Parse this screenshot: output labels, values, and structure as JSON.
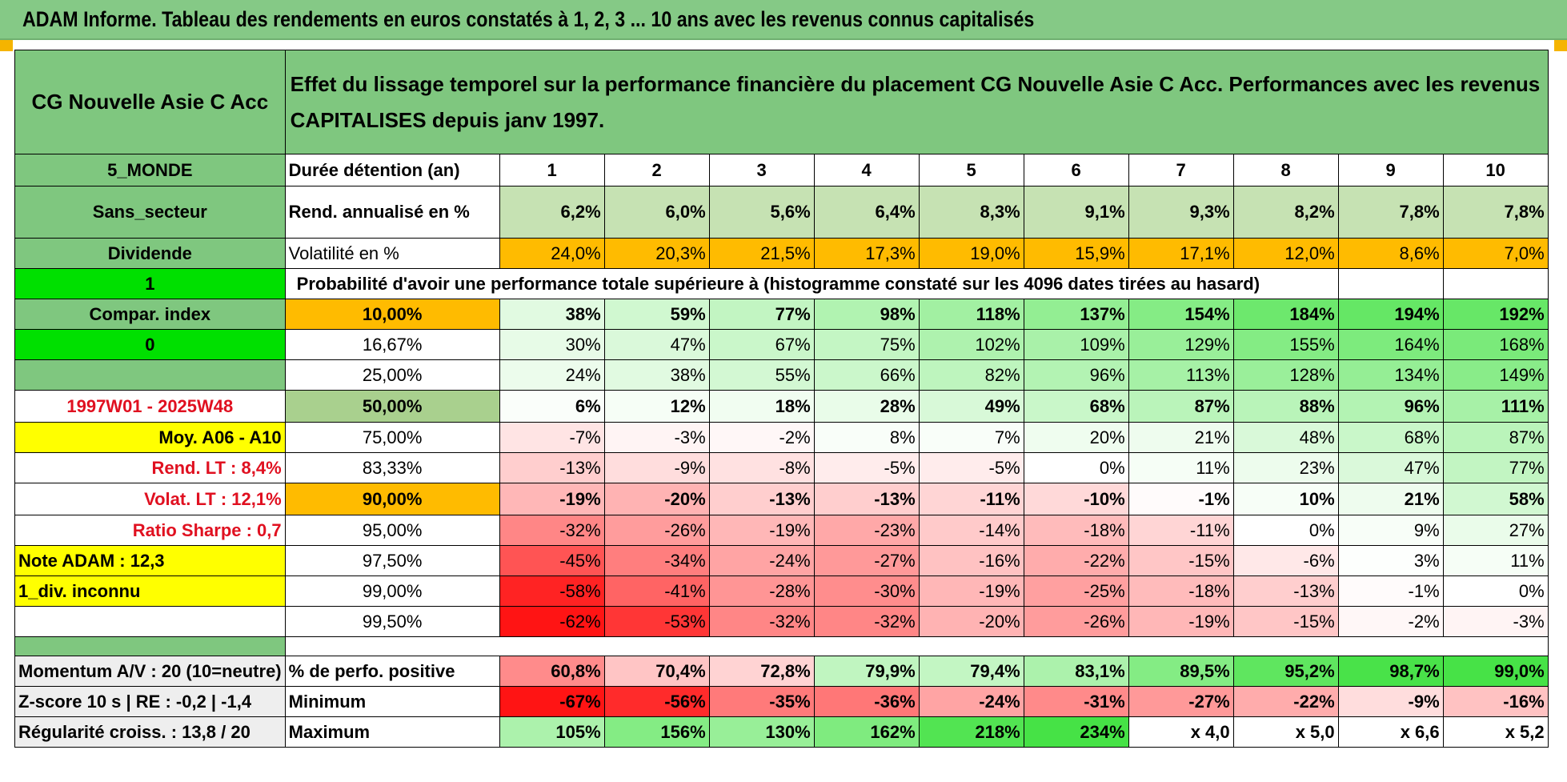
{
  "title": "ADAM Informe. Tableau des rendements en euros constatés à 1, 2, 3 ... 10 ans avec les revenus connus capitalisés",
  "header": {
    "fund_name": "CG Nouvelle Asie C Acc",
    "description": "Effet du lissage temporel sur la performance financière du placement CG Nouvelle Asie C Acc. Performances avec les revenus CAPITALISES depuis janv 1997."
  },
  "left_labels": {
    "zone": "5_MONDE",
    "sector": "Sans_secteur",
    "dividend": "Dividende",
    "one": "1",
    "compar": "Compar. index",
    "zero": "0",
    "blank": "",
    "period": "1997W01 - 2025W48",
    "moy": "Moy. A06 - A10",
    "rend_lt": "Rend. LT :    8,4%",
    "volat_lt": "Volat. LT :    12,1%",
    "sharpe": "Ratio Sharpe :     0,7",
    "note": "Note ADAM : 12,3",
    "div": "1_div. inconnu",
    "momentum": "Momentum A/V : 20 (10=neutre)",
    "zscore": "Z-score 10 s | RE : -0,2 | -1,4",
    "regularite": "Régularité croiss. : 13,8 / 20"
  },
  "duration_label": "Durée détention (an)",
  "years": [
    "1",
    "2",
    "3",
    "4",
    "5",
    "6",
    "7",
    "8",
    "9",
    "10"
  ],
  "rend_label": "Rend. annualisé en %",
  "rend": [
    "6,2%",
    "6,0%",
    "5,6%",
    "6,4%",
    "8,3%",
    "9,1%",
    "9,3%",
    "8,2%",
    "7,8%",
    "7,8%"
  ],
  "vol_label": "Volatilité en %",
  "vol": [
    "24,0%",
    "20,3%",
    "21,5%",
    "17,3%",
    "19,0%",
    "15,9%",
    "17,1%",
    "12,0%",
    "8,6%",
    "7,0%"
  ],
  "prob_label": "Probabilité d'avoir une performance totale supérieure à (histogramme constaté sur les 4096 dates tirées au hasard)",
  "prob_rows": [
    {
      "p": "10,00%",
      "v": [
        "38%",
        "59%",
        "77%",
        "98%",
        "118%",
        "137%",
        "154%",
        "184%",
        "194%",
        "192%"
      ]
    },
    {
      "p": "16,67%",
      "v": [
        "30%",
        "47%",
        "67%",
        "75%",
        "102%",
        "109%",
        "129%",
        "155%",
        "164%",
        "168%"
      ]
    },
    {
      "p": "25,00%",
      "v": [
        "24%",
        "38%",
        "55%",
        "66%",
        "82%",
        "96%",
        "113%",
        "128%",
        "134%",
        "149%"
      ]
    },
    {
      "p": "50,00%",
      "v": [
        "6%",
        "12%",
        "18%",
        "28%",
        "49%",
        "68%",
        "87%",
        "88%",
        "96%",
        "111%"
      ]
    },
    {
      "p": "75,00%",
      "v": [
        "-7%",
        "-3%",
        "-2%",
        "8%",
        "7%",
        "20%",
        "21%",
        "48%",
        "68%",
        "87%"
      ]
    },
    {
      "p": "83,33%",
      "v": [
        "-13%",
        "-9%",
        "-8%",
        "-5%",
        "-5%",
        "0%",
        "11%",
        "23%",
        "47%",
        "77%"
      ]
    },
    {
      "p": "90,00%",
      "v": [
        "-19%",
        "-20%",
        "-13%",
        "-13%",
        "-11%",
        "-10%",
        "-1%",
        "10%",
        "21%",
        "58%"
      ]
    },
    {
      "p": "95,00%",
      "v": [
        "-32%",
        "-26%",
        "-19%",
        "-23%",
        "-14%",
        "-18%",
        "-11%",
        "0%",
        "9%",
        "27%"
      ]
    },
    {
      "p": "97,50%",
      "v": [
        "-45%",
        "-34%",
        "-24%",
        "-27%",
        "-16%",
        "-22%",
        "-15%",
        "-6%",
        "3%",
        "11%"
      ]
    },
    {
      "p": "99,00%",
      "v": [
        "-58%",
        "-41%",
        "-28%",
        "-30%",
        "-19%",
        "-25%",
        "-18%",
        "-13%",
        "-1%",
        "0%"
      ]
    },
    {
      "p": "99,50%",
      "v": [
        "-62%",
        "-53%",
        "-32%",
        "-32%",
        "-20%",
        "-26%",
        "-19%",
        "-15%",
        "-2%",
        "-3%"
      ]
    }
  ],
  "positive_label": "% de perfo. positive",
  "positive": [
    "60,8%",
    "70,4%",
    "72,8%",
    "79,9%",
    "79,4%",
    "83,1%",
    "89,5%",
    "95,2%",
    "98,7%",
    "99,0%"
  ],
  "min_label": "Minimum",
  "minimum": [
    "-67%",
    "-56%",
    "-35%",
    "-36%",
    "-24%",
    "-31%",
    "-27%",
    "-22%",
    "-9%",
    "-16%"
  ],
  "max_label": "Maximum",
  "maximum": [
    "105%",
    "156%",
    "130%",
    "162%",
    "218%",
    "234%",
    "x 4,0",
    "x 5,0",
    "x 6,6",
    "x 5,2"
  ],
  "colors": {
    "header_green": "#7fc77f",
    "bright_green": "#00e000",
    "yellow": "#ffff00",
    "orange": "#ffbb00",
    "red_text": "#e01020"
  }
}
